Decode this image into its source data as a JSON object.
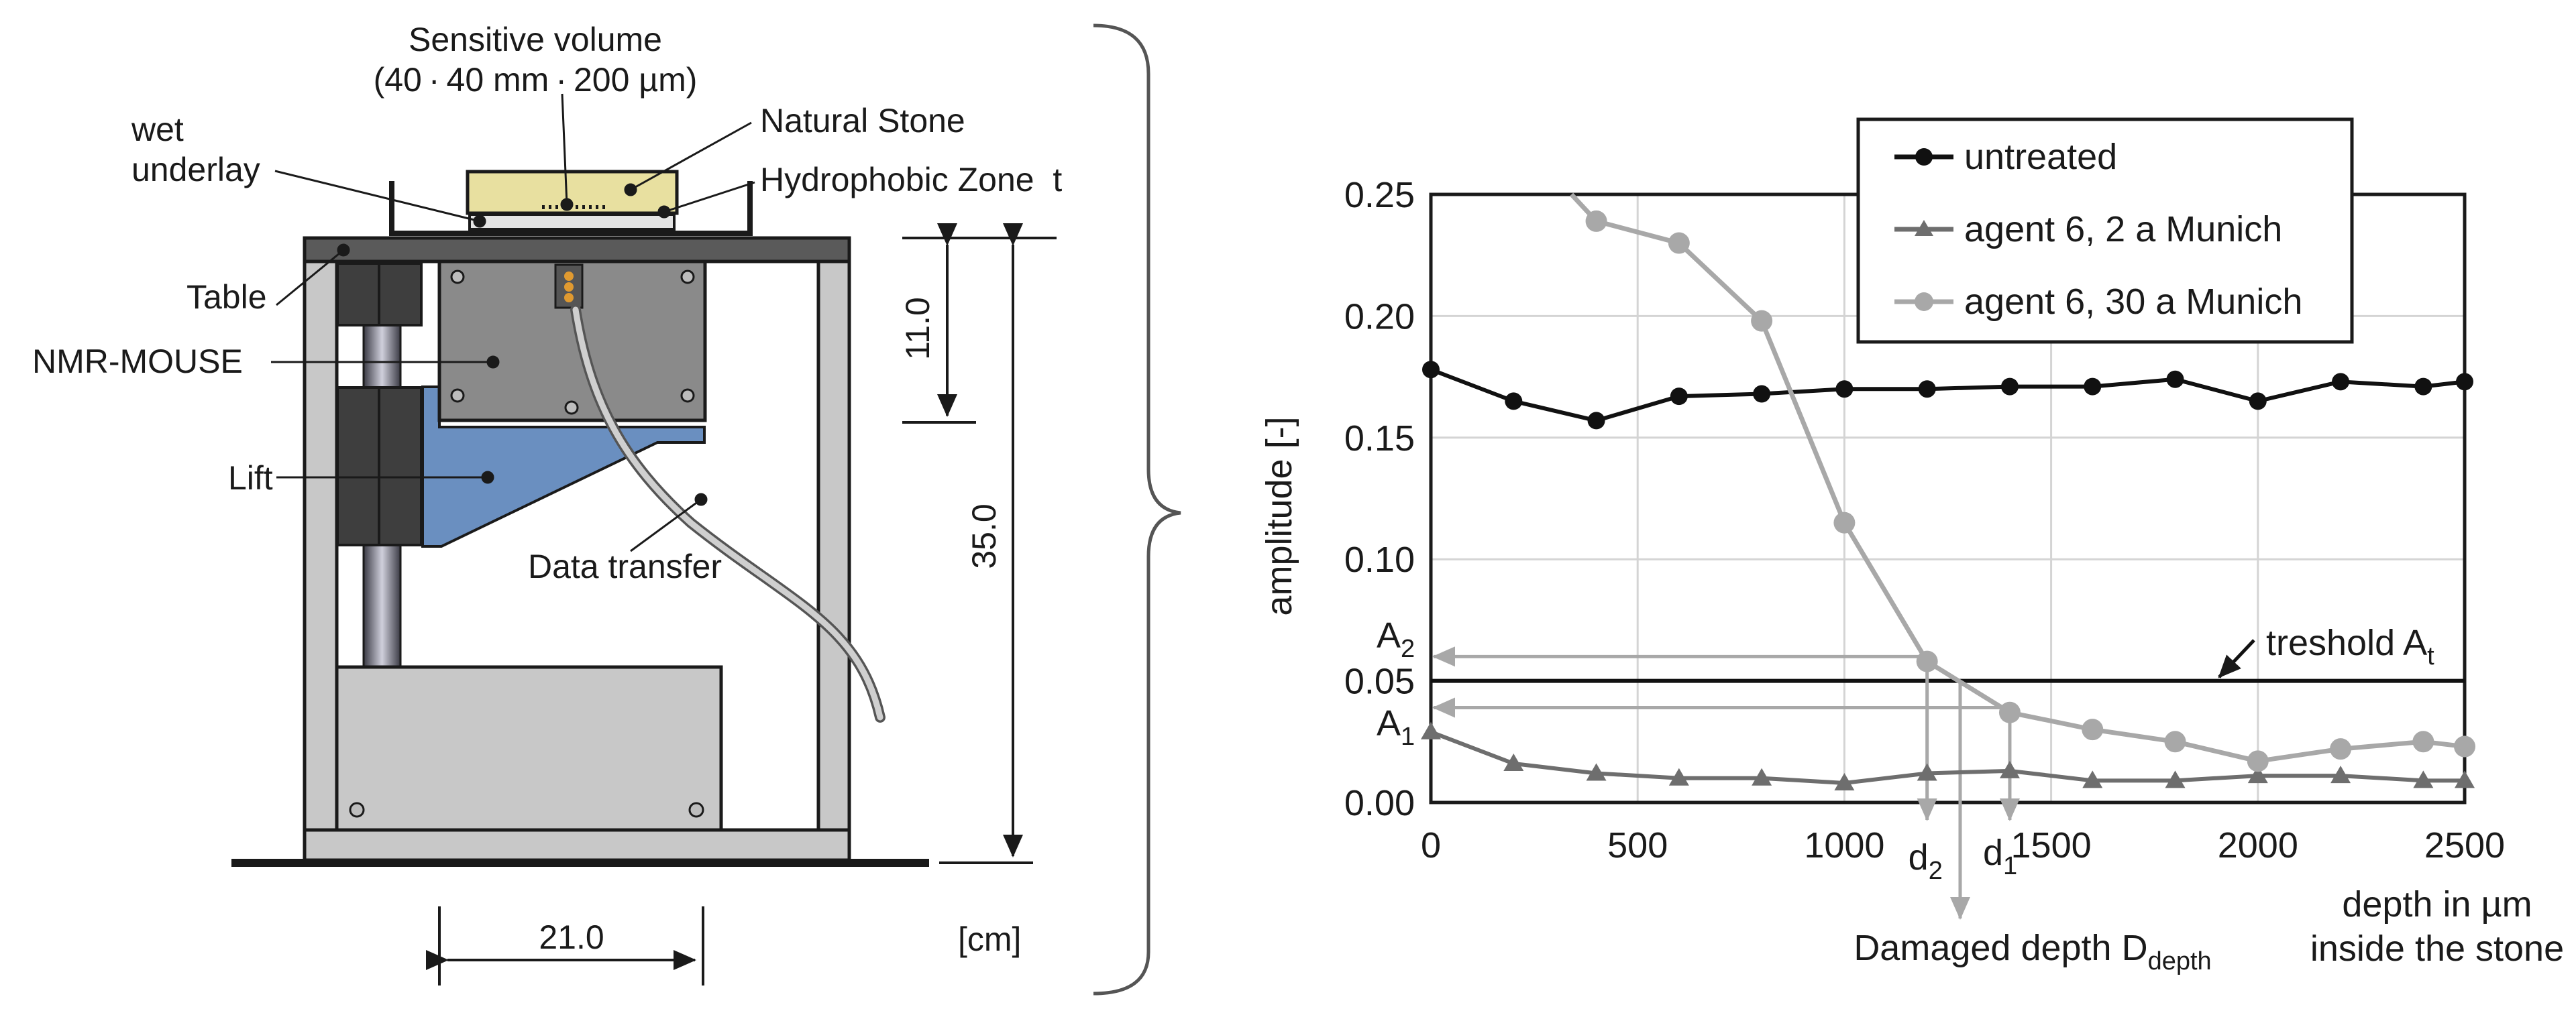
{
  "setup": {
    "sensitive_volume_title": "Sensitive volume",
    "sensitive_volume_size": "(40 · 40 mm · 200 µm)",
    "natural_stone": "Natural Stone",
    "wet_underlay_1": "wet",
    "wet_underlay_2": "underlay",
    "hydrophobic_zone": "Hydrophobic Zone  t",
    "table": "Table",
    "nmr_mouse": "NMR-MOUSE",
    "lift": "Lift",
    "data_transfer": "Data transfer",
    "dim_height_small": "11.0",
    "dim_height_large": "35.0",
    "dim_width": "21.0",
    "unit": "[cm]",
    "colors": {
      "stone": "#e8e0a0",
      "mouse": "#8a8a8a",
      "lift_plate": "#6a8fc0",
      "frame": "#c8c8c8",
      "table": "#5a5a5a"
    }
  },
  "chart_data": {
    "type": "line",
    "xlabel_line1": "depth in µm",
    "xlabel_line2": "inside the stone",
    "ylabel": "amplitude [-]",
    "xlim": [
      0,
      2500
    ],
    "ylim": [
      0,
      0.25
    ],
    "xticks": [
      0,
      500,
      1000,
      1500,
      2000,
      2500
    ],
    "xtick_labels": [
      "0",
      "500",
      "1000",
      "1500",
      "2000",
      "2500"
    ],
    "yticks": [
      0,
      0.05,
      0.1,
      0.15,
      0.2,
      0.25
    ],
    "ytick_labels": [
      "0.00",
      "0.05",
      "0.10",
      "0.15",
      "0.20",
      "0.25"
    ],
    "grid": true,
    "legend_position": "top-right",
    "series": [
      {
        "name": "untreated",
        "marker": "circle",
        "color": "#111111",
        "x": [
          0,
          200,
          400,
          600,
          800,
          1000,
          1200,
          1400,
          1600,
          1800,
          2000,
          2200,
          2400,
          2500
        ],
        "y": [
          0.178,
          0.165,
          0.157,
          0.167,
          0.168,
          0.17,
          0.17,
          0.171,
          0.171,
          0.174,
          0.165,
          0.173,
          0.171,
          0.173
        ]
      },
      {
        "name": "agent 6, 2 a Munich",
        "marker": "triangle",
        "color": "#6e6e6e",
        "x": [
          0,
          200,
          400,
          600,
          800,
          1000,
          1200,
          1400,
          1600,
          1800,
          2000,
          2200,
          2400,
          2500
        ],
        "y": [
          0.029,
          0.016,
          0.012,
          0.01,
          0.01,
          0.008,
          0.012,
          0.013,
          0.009,
          0.009,
          0.011,
          0.011,
          0.009,
          0.009
        ]
      },
      {
        "name": "agent 6, 30 a Munich",
        "marker": "circle",
        "color": "#a8a8a8",
        "x": [
          340,
          400,
          600,
          800,
          1000,
          1200,
          1400,
          1600,
          1800,
          2000,
          2200,
          2400,
          2500
        ],
        "y": [
          0.25,
          0.239,
          0.23,
          0.198,
          0.115,
          0.058,
          0.037,
          0.03,
          0.025,
          0.017,
          0.022,
          0.025,
          0.023
        ]
      }
    ],
    "threshold": {
      "value": 0.05,
      "label_main": "treshold A",
      "label_sub": "t"
    },
    "annotations": {
      "A2_main": "A",
      "A2_sub": "2",
      "A2_value": 0.06,
      "A1_main": "A",
      "A1_sub": "1",
      "A1_value": 0.039,
      "d2_main": "d",
      "d2_sub": "2",
      "d2_x": 1200,
      "d1_main": "d",
      "d1_sub": "1",
      "d1_x": 1400,
      "damaged_depth_x": 1280,
      "damaged_main": "Damaged depth D",
      "damaged_sub": "depth"
    }
  }
}
